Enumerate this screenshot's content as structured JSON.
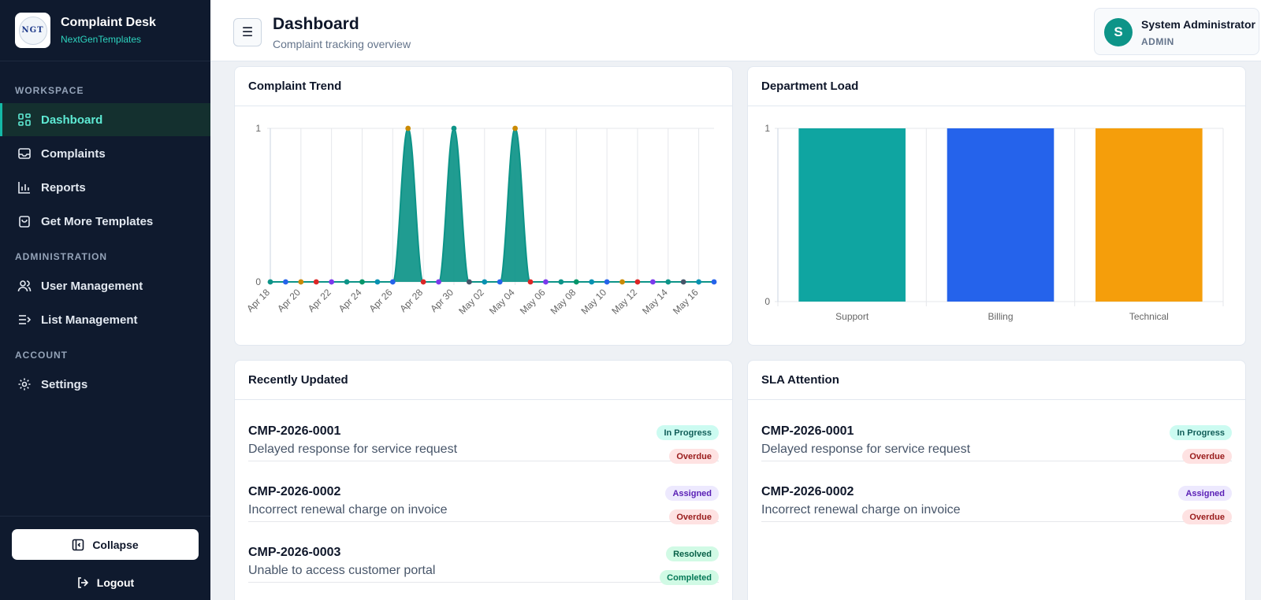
{
  "brand": {
    "title": "Complaint Desk",
    "subtitle": "NextGenTemplates",
    "logo_text": "NGT"
  },
  "sidebar": {
    "sections": {
      "workspace": "WORKSPACE",
      "administration": "ADMINISTRATION",
      "account": "ACCOUNT"
    },
    "items": [
      {
        "label": "Dashboard",
        "icon": "grid-icon",
        "active": true
      },
      {
        "label": "Complaints",
        "icon": "inbox-icon"
      },
      {
        "label": "Reports",
        "icon": "bar-chart-icon"
      },
      {
        "label": "Get More Templates",
        "icon": "shopping-bag-icon"
      },
      {
        "label": "User Management",
        "icon": "users-icon"
      },
      {
        "label": "List Management",
        "icon": "list-arrow-icon"
      },
      {
        "label": "Settings",
        "icon": "gear-icon"
      }
    ],
    "collapse_label": "Collapse",
    "logout_label": "Logout"
  },
  "header": {
    "title": "Dashboard",
    "subtitle": "Complaint tracking overview",
    "user": {
      "initial": "S",
      "name": "System Administrator",
      "role": "ADMIN"
    }
  },
  "cards": {
    "trend_title": "Complaint Trend",
    "department_title": "Department Load",
    "recent_title": "Recently Updated",
    "sla_title": "SLA Attention"
  },
  "chart_data": [
    {
      "type": "area",
      "title": "Complaint Trend",
      "x": [
        "Apr 18",
        "Apr 19",
        "Apr 20",
        "Apr 21",
        "Apr 22",
        "Apr 23",
        "Apr 24",
        "Apr 25",
        "Apr 26",
        "Apr 27",
        "Apr 28",
        "Apr 29",
        "Apr 30",
        "May 01",
        "May 02",
        "May 03",
        "May 04",
        "May 05",
        "May 06",
        "May 07",
        "May 08",
        "May 09",
        "May 10",
        "May 11",
        "May 12",
        "May 13",
        "May 14",
        "May 15",
        "May 16",
        "May 17"
      ],
      "x_tick_labels": [
        "Apr 18",
        "Apr 20",
        "Apr 22",
        "Apr 24",
        "Apr 26",
        "Apr 28",
        "Apr 30",
        "May 02",
        "May 04",
        "May 06",
        "May 08",
        "May 10",
        "May 12",
        "May 14",
        "May 16"
      ],
      "values": [
        0,
        0,
        0,
        0,
        0,
        0,
        0,
        0,
        0,
        1,
        0,
        0,
        1,
        0,
        0,
        0,
        1,
        0,
        0,
        0,
        0,
        0,
        0,
        0,
        0,
        0,
        0,
        0,
        0,
        0
      ],
      "ylim": [
        0,
        1
      ],
      "y_ticks": [
        0,
        1
      ],
      "color": "#0d9488",
      "point_colors": [
        "#0d9488",
        "#2563eb",
        "#ca8a04",
        "#dc2626",
        "#7c3aed",
        "#0d9488",
        "#059669",
        "#0891b2",
        "#2563eb",
        "#ca8a04",
        "#dc2626",
        "#7c3aed",
        "#0d9488",
        "#475569",
        "#0891b2",
        "#2563eb",
        "#ca8a04",
        "#dc2626",
        "#7c3aed",
        "#0d9488",
        "#059669",
        "#0891b2",
        "#2563eb",
        "#ca8a04",
        "#dc2626",
        "#7c3aed",
        "#0d9488",
        "#475569",
        "#0891b2",
        "#2563eb"
      ],
      "grid": true
    },
    {
      "type": "bar",
      "title": "Department Load",
      "categories": [
        "Support",
        "Billing",
        "Technical"
      ],
      "values": [
        1,
        1,
        1
      ],
      "colors": [
        "#0fa5a1",
        "#2563eb",
        "#f59e0b"
      ],
      "ylim": [
        0,
        1
      ],
      "y_ticks": [
        0,
        1
      ],
      "grid": true
    }
  ],
  "recent": [
    {
      "id": "CMP-2026-0001",
      "desc": "Delayed response for service request",
      "status": "In Progress",
      "sla": "Overdue"
    },
    {
      "id": "CMP-2026-0002",
      "desc": "Incorrect renewal charge on invoice",
      "status": "Assigned",
      "sla": "Overdue"
    },
    {
      "id": "CMP-2026-0003",
      "desc": "Unable to access customer portal",
      "status": "Resolved",
      "sla": "Completed"
    }
  ],
  "sla": [
    {
      "id": "CMP-2026-0001",
      "desc": "Delayed response for service request",
      "status": "In Progress",
      "sla": "Overdue"
    },
    {
      "id": "CMP-2026-0002",
      "desc": "Incorrect renewal charge on invoice",
      "status": "Assigned",
      "sla": "Overdue"
    }
  ]
}
